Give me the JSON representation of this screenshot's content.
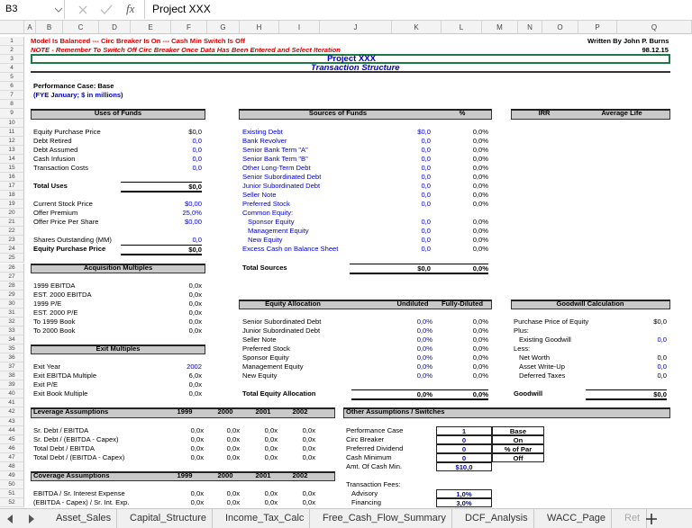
{
  "formula_bar": {
    "cell_ref": "B3",
    "function_label": "fx",
    "formula": "Project XXX"
  },
  "column_headers": [
    "A",
    "B",
    "C",
    "D",
    "E",
    "F",
    "G",
    "H",
    "I",
    "J",
    "K",
    "L",
    "M",
    "N",
    "O",
    "P",
    "Q"
  ],
  "row_headers": [
    1,
    2,
    3,
    4,
    5,
    6,
    7,
    8,
    9,
    10,
    11,
    12,
    13,
    14,
    15,
    16,
    17,
    18,
    19,
    20,
    21,
    22,
    23,
    24,
    25,
    26,
    27,
    28,
    29,
    30,
    31,
    32,
    33,
    34,
    35,
    36,
    37,
    38,
    39,
    40,
    41,
    42,
    43,
    44,
    45,
    46,
    47,
    48,
    49,
    50,
    51,
    52
  ],
  "sheet": {
    "status": "Model Is Balanced --- Circ Breaker Is On --- Cash Min Switch Is Off",
    "author": "Written By John P. Burns",
    "note": "NOTE - Remember To Switch Off Circ Breaker Once Data Has Been Entered and Select Iteration",
    "date": "98.12.15",
    "title": "Project XXX",
    "subtitle": "Transaction Structure",
    "performance_case": "Performance Case: Base",
    "units": "(FYE January; $ in millions)",
    "uses_of_funds": {
      "title": "Uses of Funds",
      "rows": [
        [
          "Equity Purchase Price",
          "$0,0"
        ],
        [
          "Debt Retired",
          "0,0"
        ],
        [
          "Debt Assumed",
          "0,0"
        ],
        [
          "Cash Infusion",
          "0,0"
        ],
        [
          "Transaction Costs",
          "0,0"
        ],
        [
          "Total Uses",
          "$0,0"
        ],
        [
          "Current Stock Price",
          "$0,00"
        ],
        [
          "Offer Premium",
          "25,0%"
        ],
        [
          "Offer Price Per Share",
          "$0,00"
        ],
        [
          "Shares Outstanding (MM)",
          "0,0"
        ],
        [
          "Equity Purchase Price",
          "$0,0"
        ]
      ]
    },
    "sources_of_funds": {
      "title": "Sources of Funds",
      "columns": [
        "%"
      ],
      "rows": [
        [
          "Existing Debt",
          "$0,0",
          "0,0%"
        ],
        [
          "Bank Revolver",
          "0,0",
          "0,0%"
        ],
        [
          "Senior Bank Term \"A\"",
          "0,0",
          "0,0%"
        ],
        [
          "Senior Bank Term \"B\"",
          "0,0",
          "0,0%"
        ],
        [
          "Other Long-Term Debt",
          "0,0",
          "0,0%"
        ],
        [
          "Senior Subordinated Debt",
          "0,0",
          "0,0%"
        ],
        [
          "Junior Subordinated Debt",
          "0,0",
          "0,0%"
        ],
        [
          "Seller Note",
          "0,0",
          "0,0%"
        ],
        [
          "Preferred Stock",
          "0,0",
          "0,0%"
        ],
        [
          "Common Equity:"
        ],
        [
          "Sponsor Equity",
          "0,0",
          "0,0%"
        ],
        [
          "Management Equity",
          "0,0",
          "0,0%"
        ],
        [
          "New Equity",
          "0,0",
          "0,0%"
        ],
        [
          "Excess Cash on Balance Sheet",
          "0,0",
          "0,0%"
        ],
        [
          "Total Sources",
          "$0,0",
          "0,0%"
        ]
      ]
    },
    "irr": {
      "title": "IRR",
      "columns": [
        "Average Life"
      ],
      "rows": []
    },
    "acquisition_multiples": {
      "title": "Acquisition Multiples",
      "rows": [
        [
          "1999 EBITDA",
          "0,0x"
        ],
        [
          "EST. 2000 EBITDA",
          "0,0x"
        ],
        [
          "1999 P/E",
          "0,0x"
        ],
        [
          "EST. 2000 P/E",
          "0,0x"
        ],
        [
          "To 1999 Book",
          "0,0x"
        ],
        [
          "To 2000 Book",
          "0,0x"
        ]
      ]
    },
    "exit_multiples": {
      "title": "Exit Multiples",
      "rows": [
        [
          "Exit Year",
          "2002"
        ],
        [
          "Exit EBITDA Multiple",
          "6,0x"
        ],
        [
          "Exit P/E",
          "0,0x"
        ],
        [
          "Exit Book Multiple",
          "0,0x"
        ]
      ]
    },
    "equity_allocation": {
      "title": "Equity Allocation",
      "columns": [
        "Undiluted",
        "Fully-Diluted"
      ],
      "rows": [
        [
          "Senior Subordinated Debt",
          "0,0%",
          "0,0%"
        ],
        [
          "Junior Subordinated Debt",
          "0,0%",
          "0,0%"
        ],
        [
          "Seller Note",
          "0,0%",
          "0,0%"
        ],
        [
          "Preferred Stock",
          "0,0%",
          "0,0%"
        ],
        [
          "Sponsor Equity",
          "0,0%",
          "0,0%"
        ],
        [
          "Management Equity",
          "0,0%",
          "0,0%"
        ],
        [
          "New Equity",
          "0,0%",
          "0,0%"
        ],
        [
          "Total Equity Allocation",
          "0,0%",
          "0,0%"
        ]
      ]
    },
    "goodwill_calculation": {
      "title": "Goodwill Calculation",
      "rows": [
        [
          "Purchase Price of Equity",
          "$0,0"
        ],
        [
          "Plus:"
        ],
        [
          "Existing Goodwill",
          "0,0"
        ],
        [
          "Less:"
        ],
        [
          "Net Worth",
          "0,0"
        ],
        [
          "Asset Write-Up",
          "0,0"
        ],
        [
          "Deferred Taxes",
          "0,0"
        ],
        [
          "Goodwill",
          "$0,0"
        ]
      ]
    },
    "leverage_assumptions": {
      "title": "Leverage Assumptions",
      "columns": [
        1999,
        2000,
        2001,
        2002
      ],
      "rows": [
        [
          "Sr. Debt / EBITDA",
          "0,0x",
          "0,0x",
          "0,0x",
          "0,0x"
        ],
        [
          "Sr. Debt / (EBITDA - Capex)",
          "0,0x",
          "0,0x",
          "0,0x",
          "0,0x"
        ],
        [
          "Total Debt / EBITDA",
          "0,0x",
          "0,0x",
          "0,0x",
          "0,0x"
        ],
        [
          "Total Debt / (EBITDA - Capex)",
          "0,0x",
          "0,0x",
          "0,0x",
          "0,0x"
        ]
      ]
    },
    "coverage_assumptions": {
      "title": "Coverage Assumptions",
      "columns": [
        1999,
        2000,
        2001,
        2002
      ],
      "rows": [
        [
          "EBITDA / Sr. Interest Expense",
          "0,0x",
          "0,0x",
          "0,0x",
          "0,0x"
        ],
        [
          "(EBITDA - Capex) / Sr. Int. Exp.",
          "0,0x",
          "0,0x",
          "0,0x",
          "0,0x"
        ]
      ]
    },
    "other_assumptions": {
      "title": "Other Assumptions / Switches",
      "rows": [
        [
          "Performance Case",
          "1",
          "Base"
        ],
        [
          "Circ Breaker",
          "0",
          "On"
        ],
        [
          "Preferred Dividend",
          "0",
          "% of Par"
        ],
        [
          "Cash Minimum",
          "0",
          "Off"
        ],
        [
          "Amt. Of Cash Min.",
          "$10,0"
        ],
        [
          "Transaction Fees:"
        ],
        [
          "Advisory",
          "1,0%"
        ],
        [
          "Financing",
          "3,0%"
        ]
      ]
    }
  },
  "tabs": [
    "Asset_Sales",
    "Capital_Structure",
    "Income_Tax_Calc",
    "Free_Cash_Flow_Summary",
    "DCF_Analysis",
    "WACC_Page",
    "Ret"
  ]
}
